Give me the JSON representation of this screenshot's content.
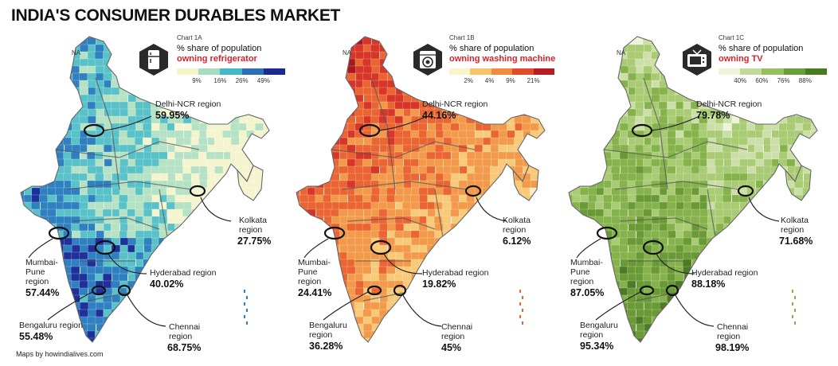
{
  "title": "INDIA'S CONSUMER DURABLES MARKET",
  "credit": "Maps by howindialives.com",
  "na_label": "NA",
  "charts": [
    {
      "chart_id": "Chart 1A",
      "header_line1": "% share of population",
      "header_line2": "owning refrigerator",
      "icon": "refrigerator-icon",
      "legend_colors": [
        "#f5f6c8",
        "#a6dcc0",
        "#45b8c6",
        "#2c6fb6",
        "#1c2a8f"
      ],
      "legend_ticks": [
        "9%",
        "16%",
        "26%",
        "49%"
      ],
      "palette": [
        "#f4f5cf",
        "#b5e2c4",
        "#59c1c8",
        "#2f80c0",
        "#20309a",
        "#152078"
      ],
      "regions": {
        "delhi": {
          "name": "Delhi-NCR region",
          "value": "59.95%"
        },
        "kolkata": {
          "name_l1": "Kolkata",
          "name_l2": "region",
          "value": "27.75%"
        },
        "mumbai": {
          "name_l1": "Mumbai-",
          "name_l2": "Pune",
          "name_l3": "region",
          "value": "57.44%"
        },
        "hyderabad": {
          "name": "Hyderabad region",
          "value": "40.02%"
        },
        "bengaluru": {
          "name": "Bengaluru region",
          "value": "55.48%"
        },
        "chennai": {
          "name_l1": "Chennai",
          "name_l2": "region",
          "value": "68.75%"
        }
      }
    },
    {
      "chart_id": "Chart 1B",
      "header_line1": "% share of population",
      "header_line2": "owning washing machine",
      "icon": "washing-machine-icon",
      "legend_colors": [
        "#fbf3c9",
        "#f7c46a",
        "#f08a3c",
        "#e34a2a",
        "#b81c22"
      ],
      "legend_ticks": [
        "2%",
        "4%",
        "9%",
        "21%"
      ],
      "palette": [
        "#fbeec4",
        "#f8c977",
        "#f39a4a",
        "#ea6532",
        "#d63527",
        "#a8161f"
      ],
      "regions": {
        "delhi": {
          "name": "Delhi-NCR region",
          "value": "44.16%"
        },
        "kolkata": {
          "name_l1": "Kolkata",
          "name_l2": "region",
          "value": "6.12%"
        },
        "mumbai": {
          "name_l1": "Mumbai-",
          "name_l2": "Pune",
          "name_l3": "region",
          "value": "24.41%"
        },
        "hyderabad": {
          "name": "Hyderabad region",
          "value": "19.82%"
        },
        "bengaluru": {
          "name_l1": "Bengaluru",
          "name_l2": "region",
          "value": "36.28%"
        },
        "chennai": {
          "name_l1": "Chennai",
          "name_l2": "region",
          "value": "45%"
        }
      }
    },
    {
      "chart_id": "Chart 1C",
      "header_line1": "% share of population",
      "header_line2": "owning TV",
      "icon": "television-icon",
      "legend_colors": [
        "#eef3dc",
        "#c3d99a",
        "#94bf5c",
        "#6a9e3a",
        "#4a7a22"
      ],
      "legend_ticks": [
        "40%",
        "60%",
        "76%",
        "88%"
      ],
      "palette": [
        "#eef3dc",
        "#cddfa8",
        "#a9cb74",
        "#86b24b",
        "#6a9a35",
        "#4d7a24"
      ],
      "regions": {
        "delhi": {
          "name": "Delhi-NCR region",
          "value": "79.78%"
        },
        "kolkata": {
          "name_l1": "Kolkata",
          "name_l2": "region",
          "value": "71.68%"
        },
        "mumbai": {
          "name_l1": "Mumbai-",
          "name_l2": "Pune",
          "name_l3": "region",
          "value": "87.05%"
        },
        "hyderabad": {
          "name": "Hyderabad region",
          "value": "88.18%"
        },
        "bengaluru": {
          "name_l1": "Bengaluru",
          "name_l2": "region",
          "value": "95.34%"
        },
        "chennai": {
          "name_l1": "Chennai",
          "name_l2": "region",
          "value": "98.19%"
        }
      }
    }
  ]
}
